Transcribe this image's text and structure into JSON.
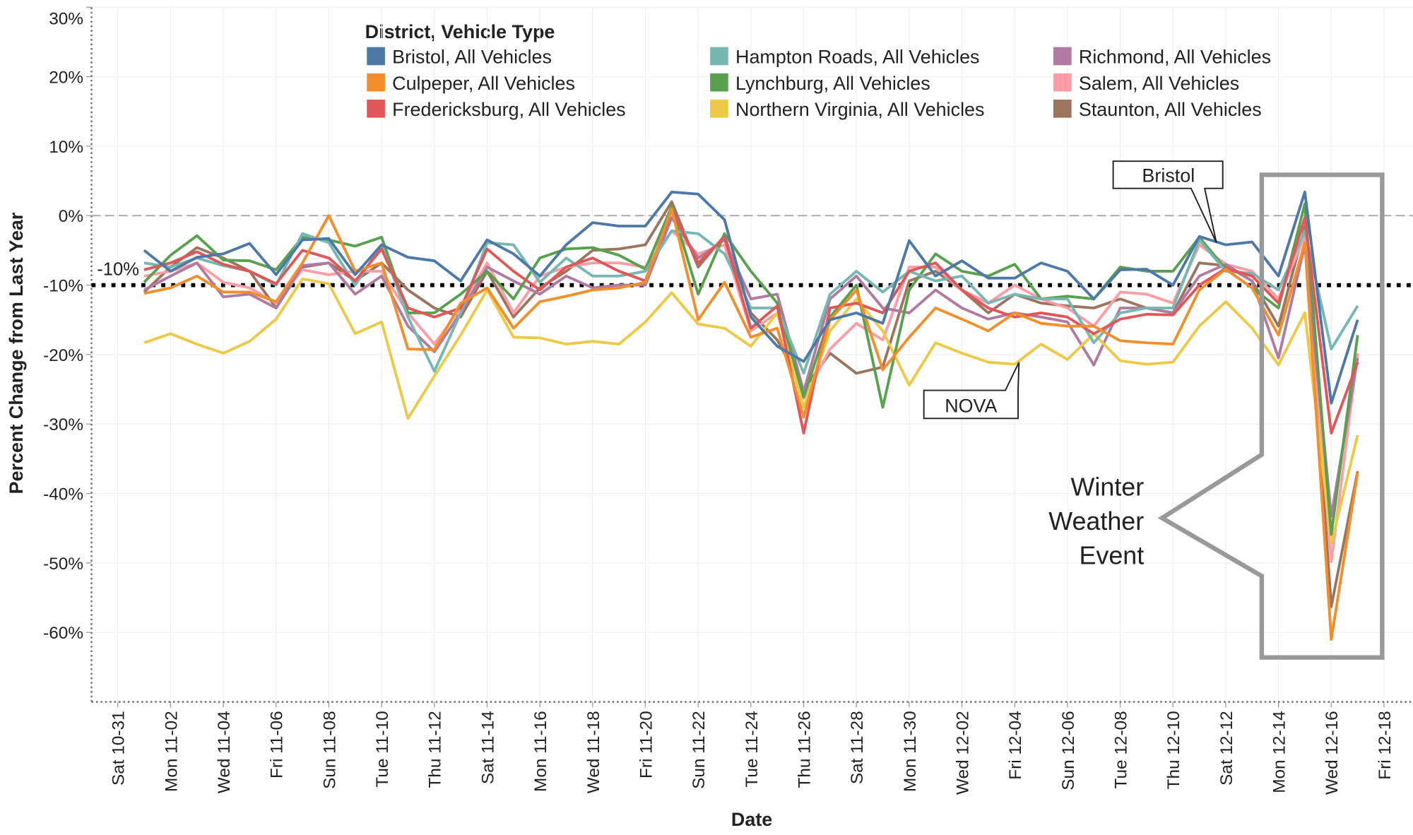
{
  "chart_data": {
    "type": "line",
    "x_label": "Date",
    "y_label": "Percent Change from Last Year",
    "legend_title": "District, Vehicle Type",
    "legend_position": "top",
    "grid": true,
    "categories": [
      "Sat 10-31",
      null,
      "Mon 11-02",
      null,
      "Wed 11-04",
      null,
      "Fri 11-06",
      null,
      "Sun 11-08",
      null,
      "Tue 11-10",
      null,
      "Thu 11-12",
      null,
      "Sat 11-14",
      null,
      "Mon 11-16",
      null,
      "Wed 11-18",
      null,
      "Fri 11-20",
      null,
      "Sun 11-22",
      null,
      "Tue 11-24",
      null,
      "Thu 11-26",
      null,
      "Sat 11-28",
      null,
      "Mon 11-30",
      null,
      "Wed 12-02",
      null,
      "Fri 12-04",
      null,
      "Sun 12-06",
      null,
      "Tue 12-08",
      null,
      "Thu 12-10",
      null,
      "Sat 12-12",
      null,
      "Mon 12-14",
      null,
      "Wed 12-16",
      null,
      "Fri 12-18"
    ],
    "ylim": [
      -70,
      30
    ],
    "yticks": [
      {
        "value": 30,
        "label": "30%"
      },
      {
        "value": 20,
        "label": "20%"
      },
      {
        "value": 10,
        "label": "10%"
      },
      {
        "value": 0,
        "label": "0%"
      },
      {
        "value": -10,
        "label": "-10%"
      },
      {
        "value": -20,
        "label": "-20%"
      },
      {
        "value": -30,
        "label": "-30%"
      },
      {
        "value": -40,
        "label": "-40%"
      },
      {
        "value": -50,
        "label": "-50%"
      },
      {
        "value": -60,
        "label": "-60%"
      }
    ],
    "reference_lines": [
      {
        "value": 0,
        "style": "dashed",
        "color": "#aaaaaa"
      },
      {
        "value": -10,
        "style": "dotted",
        "color": "#000000",
        "label": "-10%"
      }
    ],
    "annotations": [
      {
        "text": "Bristol"
      },
      {
        "text": "NOVA"
      },
      {
        "lines": [
          "Winter",
          "Weather",
          "Event"
        ]
      }
    ],
    "series": [
      {
        "name": "Bristol, All Vehicles",
        "color": "#4e79a7",
        "values": [
          null,
          -5,
          -8,
          -6,
          -5.5,
          -4,
          -8.5,
          -3.5,
          -3.3,
          -8.5,
          -4.2,
          -6,
          -6.5,
          -9.4,
          -3.5,
          -5.5,
          -8.7,
          -4.2,
          -1,
          -1.5,
          -1.5,
          3.4,
          3.1,
          -0.6,
          -14.6,
          -18.8,
          -21,
          -15,
          -14,
          -15.5,
          -3.6,
          -8.7,
          -6.5,
          -9,
          -9,
          -6.8,
          -8,
          -12,
          -7.8,
          -7.7,
          -10,
          -3,
          -4.2,
          -3.8,
          -8.7,
          3.4,
          -27,
          -15,
          null
        ]
      },
      {
        "name": "Culpeper, All Vehicles",
        "color": "#f28e2b",
        "values": [
          null,
          -11.2,
          -10.4,
          -8.7,
          -11,
          -11,
          -12.4,
          -6.8,
          0,
          -8,
          -6.8,
          -19.2,
          -19.3,
          -12.6,
          -10.4,
          -16.2,
          -12.4,
          -11.6,
          -10.7,
          -10.4,
          -9.6,
          1,
          -15,
          -9.6,
          -17.5,
          -16.2,
          -29,
          -15,
          -10.7,
          -22.2,
          -17.5,
          -13.3,
          -14.9,
          -16.6,
          -14,
          -15.5,
          -15.9,
          -15.9,
          -18,
          -18.3,
          -18.5,
          -10.7,
          -7.7,
          -10.4,
          -17.2,
          -3.9,
          -61,
          -37,
          null
        ]
      },
      {
        "name": "Fredericksburg, All Vehicles",
        "color": "#e15759",
        "values": [
          null,
          -7.8,
          -6.8,
          -5.2,
          -7,
          -8,
          -9.8,
          -5,
          -6.1,
          -9.4,
          -4.8,
          -13.3,
          -14.6,
          -13.3,
          -4.8,
          -8,
          -10.7,
          -7.4,
          -6.1,
          -8,
          -9.4,
          0.8,
          -6.8,
          -3.1,
          -16.2,
          -13,
          -31.3,
          -13.3,
          -12.6,
          -14,
          -8,
          -6.8,
          -10.7,
          -13.3,
          -14.6,
          -14,
          -14.6,
          -17,
          -14.9,
          -14.2,
          -14.3,
          -10,
          -7.6,
          -8.7,
          -12.6,
          -0.3,
          -31.3,
          -21.1,
          null
        ]
      },
      {
        "name": "Hampton Roads, All Vehicles",
        "color": "#76b7b2",
        "values": [
          null,
          -6.8,
          -7.4,
          -6.1,
          -7.2,
          -8,
          -10,
          -2.6,
          -3.9,
          -10,
          -4.2,
          -14.6,
          -22.4,
          -14,
          -3.9,
          -4.2,
          -9.6,
          -6.1,
          -8.7,
          -8.7,
          -8,
          -2.2,
          -2.6,
          -5.5,
          -13.3,
          -13.3,
          -22.7,
          -11.3,
          -8,
          -11,
          -8,
          -9.4,
          -8.7,
          -12.6,
          -11.3,
          -12,
          -12,
          -18.3,
          -14,
          -13.3,
          -13.3,
          -3.5,
          -8,
          -8.3,
          -10.7,
          -2.2,
          -19.2,
          -13,
          null
        ]
      },
      {
        "name": "Lynchburg, All Vehicles",
        "color": "#59a14f",
        "values": [
          null,
          -9.6,
          -5.7,
          -2.9,
          -6.4,
          -6.5,
          -7.8,
          -3.1,
          -3.5,
          -4.4,
          -3.1,
          -14,
          -14,
          -11.3,
          -8,
          -12,
          -6.1,
          -4.8,
          -4.6,
          -5.7,
          -7.7,
          1.3,
          -11.3,
          -2.6,
          -8,
          -12.6,
          -26.1,
          -14.6,
          -10,
          -27.6,
          -10.7,
          -5.5,
          -8,
          -8.7,
          -7,
          -12,
          -11.6,
          -12,
          -7.4,
          -8,
          -8,
          -3.1,
          -7.7,
          -10.4,
          -13.3,
          1.7,
          -45.9,
          -17.2,
          null
        ]
      },
      {
        "name": "Northern Virginia, All Vehicles",
        "color": "#edc948",
        "values": [
          null,
          -18.3,
          -17,
          -18.5,
          -19.8,
          -18.1,
          -14.9,
          -9.1,
          -9.8,
          -17,
          -15.3,
          -29.2,
          -23.1,
          -17.2,
          -10.7,
          -17.5,
          -17.6,
          -18.5,
          -18.1,
          -18.5,
          -15.3,
          -11.1,
          -15.6,
          -16.2,
          -18.8,
          -14,
          -27.6,
          -16.6,
          -12,
          -16.6,
          -24.4,
          -18.3,
          -19.8,
          -21.1,
          -21.4,
          -18.5,
          -20.7,
          -17,
          -20.9,
          -21.4,
          -21.1,
          -15.9,
          -12.4,
          -16.2,
          -21.5,
          -14,
          -47.2,
          -31.6,
          null
        ]
      },
      {
        "name": "Richmond, All Vehicles",
        "color": "#b07aa1",
        "values": [
          null,
          -10.7,
          -8.7,
          -6.8,
          -11.7,
          -11.3,
          -13.3,
          -7.2,
          -6.8,
          -11.3,
          -8.7,
          -15.9,
          -19.6,
          -14,
          -7.4,
          -9.4,
          -11.3,
          -8.7,
          -10.4,
          -10,
          -10,
          -0.3,
          -6.1,
          -3.5,
          -12,
          -11.3,
          -25.3,
          -12,
          -8.7,
          -13.3,
          -14,
          -10.7,
          -13.3,
          -14.9,
          -14,
          -14.6,
          -15.3,
          -21.5,
          -13.3,
          -13.3,
          -14,
          -8.7,
          -7,
          -9.4,
          -20.5,
          -4.2,
          -43.3,
          -20.5,
          null
        ]
      },
      {
        "name": "Salem, All Vehicles",
        "color": "#ff9da7",
        "values": [
          null,
          -8.7,
          -8,
          -6.8,
          -9.6,
          -10.4,
          -12.6,
          -7.8,
          -8.5,
          -8,
          -8,
          -14,
          -18.5,
          -13.3,
          -6.8,
          -14,
          -8.7,
          -7.4,
          -6.8,
          -6.8,
          -7.4,
          -2.2,
          -5.5,
          -4.2,
          -16.6,
          -14,
          -26.3,
          -19.2,
          -15.5,
          -17.9,
          -7.4,
          -7.4,
          -10.7,
          -12.6,
          -10,
          -12,
          -13.3,
          -15.9,
          -11,
          -11.3,
          -12.6,
          -4.2,
          -7,
          -8,
          -12,
          -2.9,
          -49.8,
          -19.8,
          null
        ]
      },
      {
        "name": "Staunton, All Vehicles",
        "color": "#9c755f",
        "values": [
          null,
          -11,
          -7.4,
          -4.6,
          -6.1,
          -8,
          -13.3,
          -7.4,
          -6.8,
          -9.4,
          -6.8,
          -10.7,
          -13.3,
          -14.6,
          -8,
          -14.6,
          -10.4,
          -8,
          -5,
          -4.8,
          -4.2,
          2,
          -7.4,
          -2.9,
          -14,
          -17.9,
          -25,
          -19.8,
          -22.7,
          -21.8,
          -9.4,
          -8,
          -10.7,
          -14,
          -11.3,
          -12.6,
          -13,
          -13.3,
          -12,
          -13.3,
          -14,
          -6.8,
          -7.2,
          -9.4,
          -15.9,
          -1.6,
          -56.3,
          -36.8,
          null
        ]
      }
    ]
  }
}
